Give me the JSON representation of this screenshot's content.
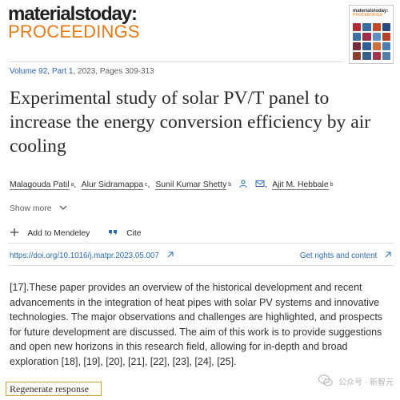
{
  "header": {
    "brand_top": "materialstoday:",
    "brand_bottom": "PROCEEDINGS",
    "cover_line_1": "materialstoday:",
    "cover_line_2": "PROCEEDINGS"
  },
  "article": {
    "volume_link": "Volume 92, Part 1",
    "volume_rest": ", 2023, Pages 309-313",
    "title": "Experimental study of solar PV/T panel to increase the energy conversion efficiency by air cooling",
    "authors": [
      {
        "name": "Malagouda Patil",
        "aff": "a"
      },
      {
        "name": "Alur Sidramappa",
        "aff": "c"
      },
      {
        "name": "Sunil Kumar Shetty",
        "aff": "b"
      },
      {
        "name": "Ajit M. Hebbale",
        "aff": "b"
      }
    ],
    "author_separator": ",",
    "show_more": "Show more",
    "actions": {
      "add_to_mendeley": "Add to Mendeley",
      "cite": "Cite"
    },
    "doi": "https://doi.org/10.1016/j.matpr.2023.05.007",
    "rights": "Get rights and content",
    "body": "[17].These paper provides an overview of the historical development and recent advancements in the integration of heat pipes with solar PV systems and innovative technologies. The major observations and challenges are highlighted, and prospects for future development are discussed. The aim of this work is to provide suggestions and open new horizons in this research field, allowing for in-depth and broad exploration [18], [19], [20], [21], [22], [23], [24], [25]."
  },
  "footer": {
    "regenerate_label": "Regenerate response",
    "watermark": "公众号 · 新智元"
  },
  "icons": {
    "person": "person-icon",
    "email": "email-icon",
    "chevron": "chevron-down-icon",
    "plus": "plus-icon",
    "quote": "quote-icon",
    "external": "external-link-icon",
    "wechat": "wechat-icon"
  },
  "colors": {
    "brand_orange": "#e67a17",
    "link_blue": "#2c6db4",
    "regen_border": "#d4a23a"
  }
}
